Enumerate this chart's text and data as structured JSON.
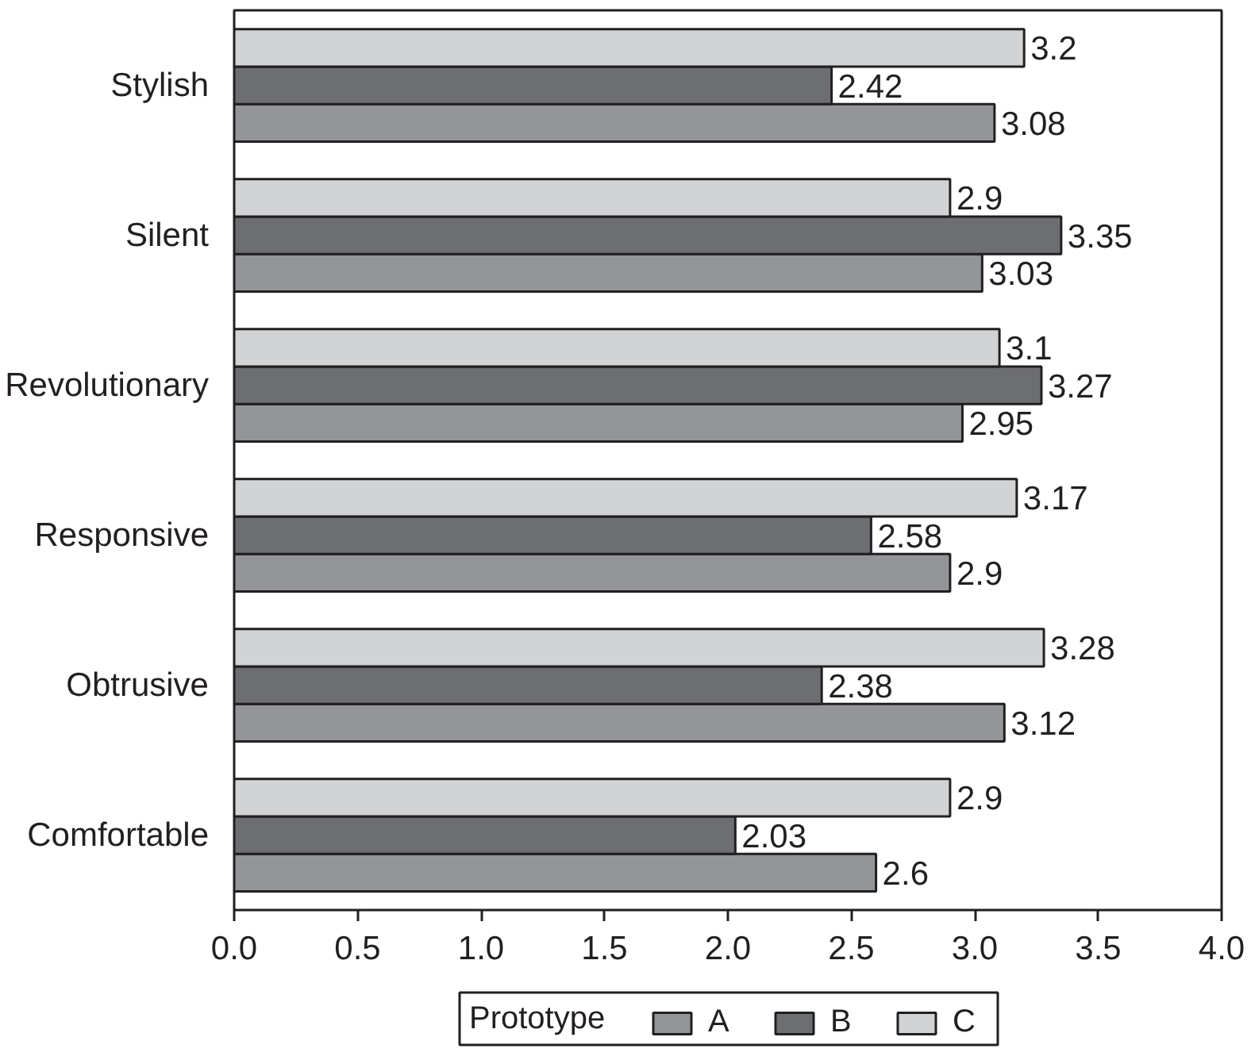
{
  "chart_data": {
    "type": "bar",
    "orientation": "horizontal",
    "categories": [
      "Stylish",
      "Silent",
      "Revolutionary",
      "Responsive",
      "Obtrusive",
      "Comfortable"
    ],
    "series": [
      {
        "name": "A",
        "color": "#939598",
        "values": [
          3.08,
          3.03,
          2.95,
          2.9,
          3.12,
          2.6
        ]
      },
      {
        "name": "B",
        "color": "#6d6e71",
        "values": [
          2.42,
          3.35,
          3.27,
          2.58,
          2.38,
          2.03
        ]
      },
      {
        "name": "C",
        "color": "#d1d3d4",
        "values": [
          3.2,
          2.9,
          3.1,
          3.17,
          3.28,
          2.9
        ]
      }
    ],
    "xlim": [
      0,
      4
    ],
    "xticks": [
      {
        "value": 0,
        "label": "0.0"
      },
      0.5,
      {
        "value": 1,
        "label": "1.0"
      },
      1.5,
      {
        "value": 2,
        "label": "2.0"
      },
      2.5,
      {
        "value": 3,
        "label": "3.0"
      },
      3.5,
      {
        "value": 4,
        "label": "4.0"
      }
    ],
    "data_labels": true,
    "legend": "bottom",
    "legend_title": "Prototype"
  }
}
